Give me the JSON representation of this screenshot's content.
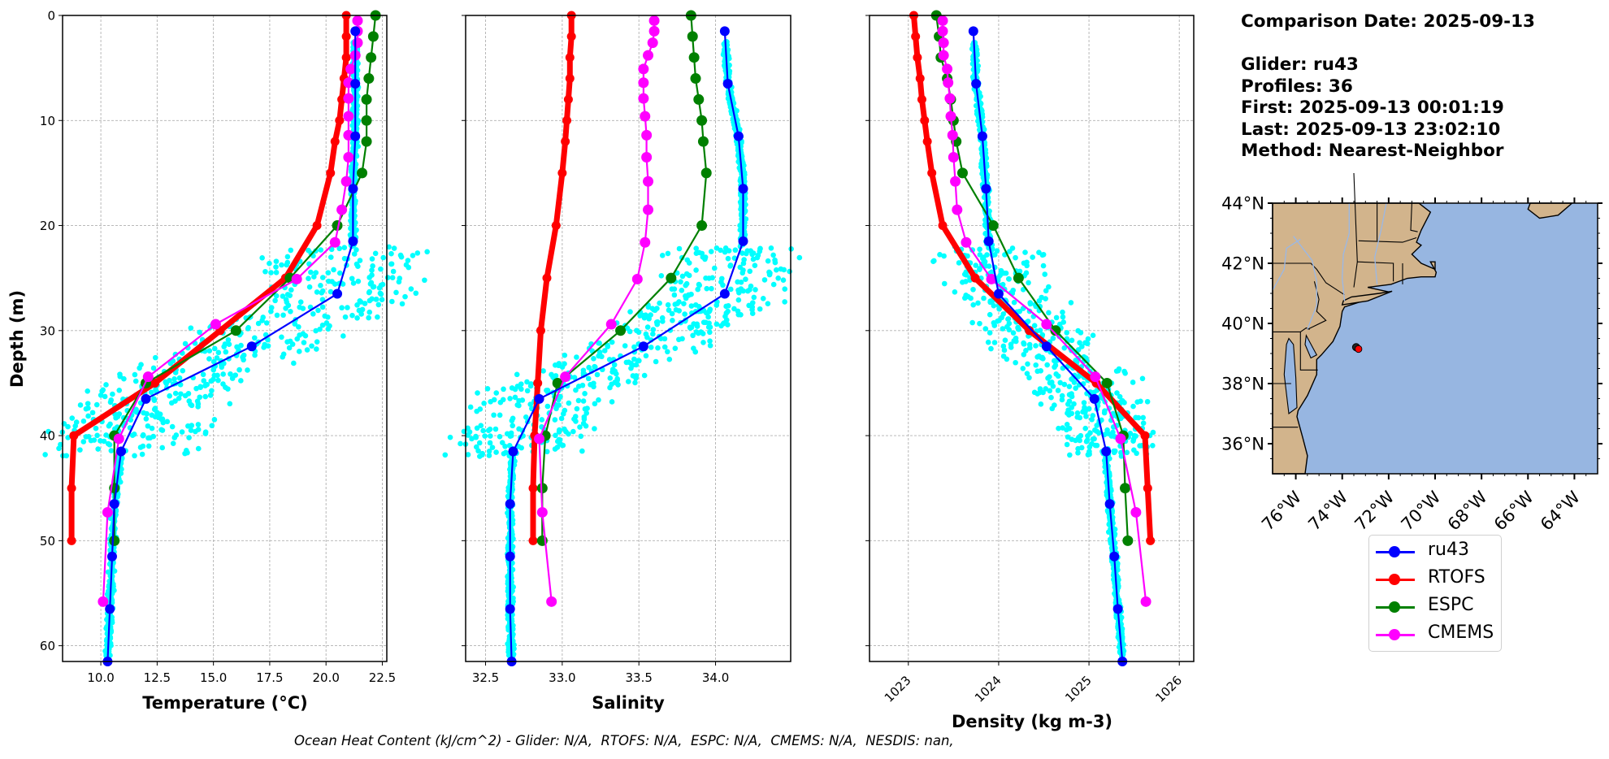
{
  "info": {
    "comparison_date": "Comparison Date: 2025-09-13",
    "glider": "Glider: ru43",
    "profiles": "Profiles: 36",
    "first": "First: 2025-09-13 00:01:19",
    "last": "Last: 2025-09-13 23:02:10",
    "method": "Method: Nearest-Neighbor"
  },
  "footer": "Ocean Heat Content (kJ/cm^2) - Glider: N/A,  RTOFS: N/A,  ESPC: N/A,  CMEMS: N/A,  NESDIS: nan,",
  "legend": [
    {
      "label": "ru43",
      "color": "#0000ff"
    },
    {
      "label": "RTOFS",
      "color": "#ff0000"
    },
    {
      "label": "ESPC",
      "color": "#008000"
    },
    {
      "label": "CMEMS",
      "color": "#ff00ff"
    }
  ],
  "colors": {
    "glider_scatter": "#00ffff",
    "ru43": "#0000ff",
    "RTOFS": "#ff0000",
    "ESPC": "#008000",
    "CMEMS": "#ff00ff",
    "land": "#d2b48c",
    "ocean": "#97b6e1"
  },
  "map": {
    "lat_ticks": [
      "44°N",
      "42°N",
      "40°N",
      "38°N",
      "36°N"
    ],
    "lon_ticks": [
      "76°W",
      "74°W",
      "72°W",
      "70°W",
      "68°W",
      "66°W",
      "64°W"
    ],
    "extent": {
      "lon": [
        -77,
        -63
      ],
      "lat": [
        35,
        44
      ]
    },
    "glider_position": {
      "lon": -73.3,
      "lat": 39.15
    }
  },
  "chart_data": [
    {
      "type": "line",
      "title": "",
      "xlabel": "Temperature (°C)",
      "ylabel": "Depth (m)",
      "xlim": [
        8.3,
        22.7
      ],
      "ylim": [
        61.5,
        0
      ],
      "xticks": [
        "10.0",
        "12.5",
        "15.0",
        "17.5",
        "20.0",
        "22.5"
      ],
      "yticks": [
        "0",
        "10",
        "20",
        "30",
        "40",
        "50",
        "60"
      ],
      "grid": true,
      "series": [
        {
          "name": "ru43",
          "depth": [
            1.5,
            6.5,
            11.5,
            16.5,
            21.5,
            26.5,
            31.5,
            36.5,
            41.5,
            46.5,
            51.5,
            56.5,
            61.5
          ],
          "values": [
            21.3,
            21.3,
            21.3,
            21.2,
            21.2,
            20.5,
            16.7,
            12.0,
            10.9,
            10.6,
            10.5,
            10.4,
            10.3
          ]
        },
        {
          "name": "RTOFS",
          "depth": [
            0,
            2,
            4,
            6,
            8,
            10,
            12,
            15,
            20,
            25,
            30,
            35,
            40,
            45,
            50
          ],
          "values": [
            20.9,
            20.9,
            20.9,
            20.8,
            20.7,
            20.6,
            20.4,
            20.2,
            19.6,
            18.2,
            15.3,
            12.4,
            8.8,
            8.7,
            8.7
          ]
        },
        {
          "name": "ESPC",
          "depth": [
            0,
            2,
            4,
            6,
            8,
            10,
            12,
            15,
            20,
            25,
            30,
            35,
            40,
            45,
            50
          ],
          "values": [
            22.2,
            22.1,
            22.0,
            21.9,
            21.8,
            21.8,
            21.8,
            21.6,
            20.5,
            18.4,
            16.0,
            12.0,
            10.6,
            10.6,
            10.6
          ]
        },
        {
          "name": "CMEMS",
          "depth": [
            0.5,
            1.5,
            2.6,
            3.8,
            5.1,
            6.4,
            7.9,
            9.6,
            11.4,
            13.5,
            15.8,
            18.5,
            21.6,
            25.1,
            29.4,
            34.4,
            40.3,
            47.3,
            55.8
          ],
          "values": [
            21.4,
            21.4,
            21.4,
            21.3,
            21.1,
            21.0,
            21.0,
            21.0,
            21.0,
            21.0,
            20.9,
            20.7,
            20.4,
            18.7,
            15.1,
            12.1,
            10.8,
            10.3,
            10.1
          ]
        }
      ]
    },
    {
      "type": "line",
      "title": "",
      "xlabel": "Salinity",
      "ylabel": "",
      "xlim": [
        32.37,
        34.49
      ],
      "ylim": [
        61.5,
        0
      ],
      "xticks": [
        "32.5",
        "33.0",
        "33.5",
        "34.0"
      ],
      "grid": true,
      "series": [
        {
          "name": "ru43",
          "depth": [
            1.5,
            6.5,
            11.5,
            16.5,
            21.5,
            26.5,
            31.5,
            36.5,
            41.5,
            46.5,
            51.5,
            56.5,
            61.5
          ],
          "values": [
            34.06,
            34.08,
            34.15,
            34.18,
            34.18,
            34.06,
            33.53,
            32.85,
            32.68,
            32.66,
            32.66,
            32.66,
            32.67
          ]
        },
        {
          "name": "RTOFS",
          "depth": [
            0,
            2,
            4,
            6,
            8,
            10,
            12,
            15,
            20,
            25,
            30,
            35,
            40,
            45,
            50
          ],
          "values": [
            33.06,
            33.06,
            33.05,
            33.05,
            33.04,
            33.03,
            33.02,
            33.0,
            32.96,
            32.9,
            32.86,
            32.84,
            32.82,
            32.81,
            32.81
          ]
        },
        {
          "name": "ESPC",
          "depth": [
            0,
            2,
            4,
            6,
            8,
            10,
            12,
            15,
            20,
            25,
            30,
            35,
            40,
            45,
            50
          ],
          "values": [
            33.84,
            33.85,
            33.86,
            33.87,
            33.89,
            33.91,
            33.92,
            33.94,
            33.91,
            33.71,
            33.38,
            32.97,
            32.89,
            32.87,
            32.87
          ]
        },
        {
          "name": "CMEMS",
          "depth": [
            0.5,
            1.5,
            2.6,
            3.8,
            5.1,
            6.4,
            7.9,
            9.6,
            11.4,
            13.5,
            15.8,
            18.5,
            21.6,
            25.1,
            29.4,
            34.4,
            40.3,
            47.3,
            55.8
          ],
          "values": [
            33.6,
            33.6,
            33.59,
            33.56,
            33.53,
            33.53,
            33.53,
            33.54,
            33.55,
            33.55,
            33.56,
            33.56,
            33.54,
            33.49,
            33.32,
            33.02,
            32.85,
            32.87,
            32.93
          ]
        }
      ]
    },
    {
      "type": "line",
      "title": "",
      "xlabel": "Density (kg m-3)",
      "ylabel": "",
      "xlim": [
        1022.57,
        1026.16
      ],
      "ylim": [
        61.5,
        0
      ],
      "xticks": [
        "1023",
        "1024",
        "1025",
        "1026"
      ],
      "grid": true,
      "series": [
        {
          "name": "ru43",
          "depth": [
            1.5,
            6.5,
            11.5,
            16.5,
            21.5,
            26.5,
            31.5,
            36.5,
            41.5,
            46.5,
            51.5,
            56.5,
            61.5
          ],
          "values": [
            1023.72,
            1023.75,
            1023.82,
            1023.86,
            1023.89,
            1024.0,
            1024.53,
            1025.06,
            1025.19,
            1025.23,
            1025.28,
            1025.32,
            1025.37
          ]
        },
        {
          "name": "RTOFS",
          "depth": [
            0,
            2,
            4,
            6,
            8,
            10,
            12,
            15,
            20,
            25,
            30,
            35,
            40,
            45,
            50
          ],
          "values": [
            1023.06,
            1023.08,
            1023.1,
            1023.13,
            1023.15,
            1023.18,
            1023.21,
            1023.26,
            1023.38,
            1023.74,
            1024.34,
            1025.08,
            1025.62,
            1025.65,
            1025.68
          ]
        },
        {
          "name": "ESPC",
          "depth": [
            0,
            2,
            4,
            6,
            8,
            10,
            12,
            15,
            20,
            25,
            30,
            35,
            40,
            45,
            50
          ],
          "values": [
            1023.31,
            1023.34,
            1023.36,
            1023.43,
            1023.47,
            1023.5,
            1023.53,
            1023.6,
            1023.94,
            1024.22,
            1024.63,
            1025.2,
            1025.38,
            1025.4,
            1025.43
          ]
        },
        {
          "name": "CMEMS",
          "depth": [
            0.5,
            1.5,
            2.6,
            3.8,
            5.1,
            6.4,
            7.9,
            9.6,
            11.4,
            13.5,
            15.8,
            18.5,
            21.6,
            25.1,
            29.4,
            34.4,
            40.3,
            47.3,
            55.8
          ],
          "values": [
            1023.38,
            1023.38,
            1023.39,
            1023.39,
            1023.43,
            1023.44,
            1023.46,
            1023.47,
            1023.49,
            1023.5,
            1023.52,
            1023.54,
            1023.64,
            1023.92,
            1024.53,
            1025.07,
            1025.35,
            1025.52,
            1025.63
          ]
        }
      ],
      "notes": "Each panel also shows cyan scatter points from the 36 individual glider profiles."
    }
  ]
}
